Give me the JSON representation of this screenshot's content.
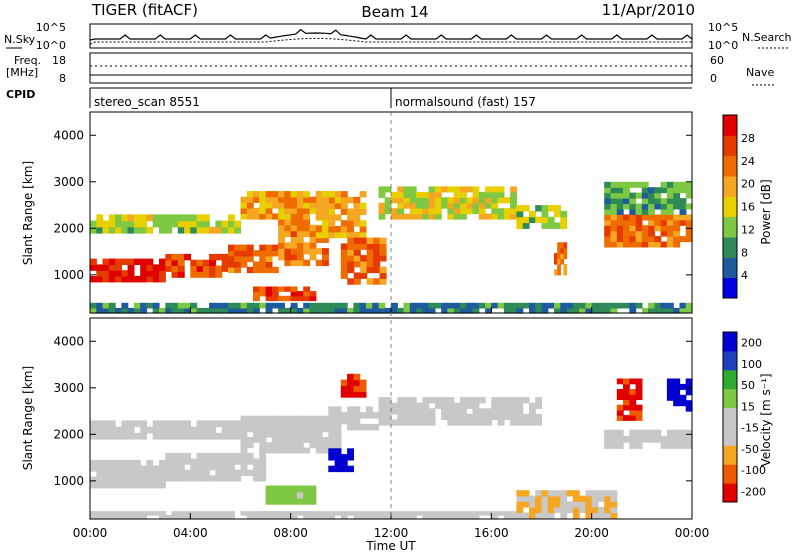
{
  "header": {
    "title": "TIGER (fitACF)",
    "beam": "Beam 14",
    "date": "11/Apr/2010"
  },
  "status_panel": {
    "nsky_label": "N.Sky",
    "nsky_axis_top": "10^5",
    "nsky_axis_bottom": "10^0",
    "nsky_right_top": "10^5",
    "nsky_right_bottom": "10^0",
    "nsearch_label": "N.Search",
    "freq_label_1": "Freq.",
    "freq_label_2": "[MHz]",
    "freq_axis_top": "18",
    "freq_axis_bottom": "8",
    "nave_axis_top": "60",
    "nave_axis_bottom": "0",
    "nave_label": "Nave",
    "cpid_label": "CPID",
    "cpid_segments": [
      {
        "name": "stereo_scan 8551",
        "start_hour": 0,
        "end_hour": 12
      },
      {
        "name": "normalsound (fast) 157",
        "start_hour": 12,
        "end_hour": 24
      }
    ]
  },
  "chart_data": [
    {
      "type": "heatmap",
      "name": "power",
      "ylabel": "Slant Range [km]",
      "ylim": [
        180,
        4500
      ],
      "yticks": [
        "1000",
        "2000",
        "3000",
        "4000"
      ],
      "xlim": [
        0,
        24
      ],
      "colorbar": {
        "label": "Power [dB]",
        "range": [
          0,
          32
        ],
        "ticks": [
          "4",
          "8",
          "12",
          "16",
          "20",
          "24",
          "28"
        ],
        "colors": [
          "#0000e0",
          "#1e5a9e",
          "#2e8b57",
          "#7fc843",
          "#e8d000",
          "#f5a623",
          "#ef6c00",
          "#e53a00",
          "#e00000"
        ]
      },
      "regions": [
        {
          "t0": 0.0,
          "t1": 3.0,
          "r0": 850,
          "r1": 1350,
          "v": 29
        },
        {
          "t0": 3.0,
          "t1": 5.5,
          "r0": 950,
          "r1": 1450,
          "v": 27
        },
        {
          "t0": 5.5,
          "t1": 7.5,
          "r0": 1050,
          "r1": 1650,
          "v": 24
        },
        {
          "t0": 7.5,
          "t1": 9.5,
          "r0": 1200,
          "r1": 2200,
          "v": 22
        },
        {
          "t0": 9.0,
          "t1": 11.0,
          "r0": 1800,
          "r1": 2800,
          "v": 20
        },
        {
          "t0": 0.0,
          "t1": 6.0,
          "r0": 1900,
          "r1": 2300,
          "v": 14
        },
        {
          "t0": 6.0,
          "t1": 9.5,
          "r0": 2200,
          "r1": 2800,
          "v": 20
        },
        {
          "t0": 10.0,
          "t1": 11.8,
          "r0": 800,
          "r1": 1800,
          "v": 24
        },
        {
          "t0": 6.5,
          "t1": 9.0,
          "r0": 450,
          "r1": 750,
          "v": 26
        },
        {
          "t0": 11.5,
          "t1": 17.0,
          "r0": 2200,
          "r1": 2900,
          "v": 16
        },
        {
          "t0": 17.0,
          "t1": 19.0,
          "r0": 2000,
          "r1": 2500,
          "v": 13
        },
        {
          "t0": 18.5,
          "t1": 19.0,
          "r0": 1000,
          "r1": 1700,
          "v": 23
        },
        {
          "t0": 20.5,
          "t1": 24.0,
          "r0": 1600,
          "r1": 2300,
          "v": 24
        },
        {
          "t0": 20.5,
          "t1": 24.0,
          "r0": 2300,
          "r1": 3000,
          "v": 10
        },
        {
          "t0": 0.0,
          "t1": 24.0,
          "r0": 180,
          "r1": 400,
          "v": 8
        }
      ]
    },
    {
      "type": "heatmap",
      "name": "velocity",
      "ylabel": "Slant Range [km]",
      "ylim": [
        180,
        4500
      ],
      "yticks": [
        "1000",
        "2000",
        "3000",
        "4000"
      ],
      "xlim": [
        0,
        24
      ],
      "xticks": [
        "00:00",
        "04:00",
        "08:00",
        "12:00",
        "16:00",
        "20:00",
        "00:00"
      ],
      "xlabel": "Time UT",
      "colorbar": {
        "label": "Velocity [m s⁻¹]",
        "range": [
          -250,
          250
        ],
        "ticks": [
          "200",
          "100",
          "50",
          "15",
          "-15",
          "-50",
          "-100",
          "-200"
        ],
        "colors": [
          "#e00000",
          "#ef5a00",
          "#f5a623",
          "#c8c8c8",
          "#c8c8c8",
          "#7fc843",
          "#2eaa2e",
          "#2040c0",
          "#0000d0"
        ]
      },
      "regions": [
        {
          "t0": 0.0,
          "t1": 3.0,
          "r0": 850,
          "r1": 1450,
          "v": 0
        },
        {
          "t0": 3.0,
          "t1": 7.0,
          "r0": 1000,
          "r1": 1600,
          "v": 0
        },
        {
          "t0": 0.0,
          "t1": 6.0,
          "r0": 1900,
          "r1": 2300,
          "v": 0
        },
        {
          "t0": 6.0,
          "t1": 10.0,
          "r0": 1600,
          "r1": 2400,
          "v": 0
        },
        {
          "t0": 9.5,
          "t1": 11.5,
          "r0": 2100,
          "r1": 2600,
          "v": 0
        },
        {
          "t0": 11.5,
          "t1": 18.0,
          "r0": 2200,
          "r1": 2800,
          "v": 0
        },
        {
          "t0": 20.5,
          "t1": 24.0,
          "r0": 1700,
          "r1": 2100,
          "v": 0
        },
        {
          "t0": 7.0,
          "t1": 9.0,
          "r0": 500,
          "r1": 900,
          "v": 40
        },
        {
          "t0": 9.5,
          "t1": 10.5,
          "r0": 1200,
          "r1": 1700,
          "v": 220
        },
        {
          "t0": 10.0,
          "t1": 11.0,
          "r0": 2800,
          "r1": 3300,
          "v": -200
        },
        {
          "t0": 21.0,
          "t1": 22.0,
          "r0": 2300,
          "r1": 3200,
          "v": -200
        },
        {
          "t0": 23.0,
          "t1": 24.0,
          "r0": 2500,
          "r1": 3200,
          "v": 220
        },
        {
          "t0": 17.0,
          "t1": 21.0,
          "r0": 200,
          "r1": 800,
          "v": -80
        },
        {
          "t0": 0.0,
          "t1": 17.0,
          "r0": 180,
          "r1": 350,
          "v": -30
        }
      ]
    }
  ]
}
